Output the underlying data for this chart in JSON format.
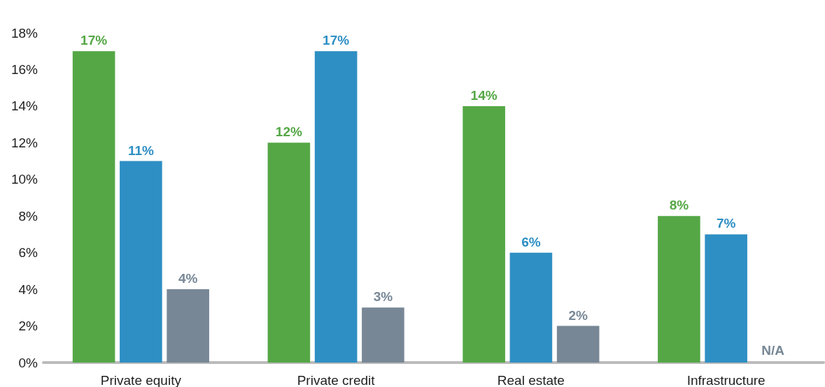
{
  "chart_data": {
    "type": "bar",
    "categories": [
      "Private equity",
      "Private credit",
      "Real estate",
      "Infrastructure"
    ],
    "series": [
      {
        "color": "#55a746",
        "values": [
          17,
          12,
          14,
          8
        ],
        "value_labels": [
          "17%",
          "12%",
          "14%",
          "8%"
        ]
      },
      {
        "color": "#2e8fc4",
        "values": [
          11,
          17,
          6,
          7
        ],
        "value_labels": [
          "11%",
          "17%",
          "6%",
          "7%"
        ]
      },
      {
        "color": "#778796",
        "values": [
          4,
          3,
          2,
          null
        ],
        "value_labels": [
          "4%",
          "3%",
          "2%",
          "N/A"
        ]
      }
    ],
    "ylim": [
      0,
      18
    ],
    "yticks": [
      {
        "value": 0,
        "label": "0%"
      },
      {
        "value": 2,
        "label": "2%"
      },
      {
        "value": 4,
        "label": "4%"
      },
      {
        "value": 6,
        "label": "6%"
      },
      {
        "value": 8,
        "label": "8%"
      },
      {
        "value": 10,
        "label": "10%"
      },
      {
        "value": 12,
        "label": "12%"
      },
      {
        "value": 14,
        "label": "14%"
      },
      {
        "value": 16,
        "label": "16%"
      },
      {
        "value": 18,
        "label": "18%"
      }
    ],
    "grid": false
  }
}
